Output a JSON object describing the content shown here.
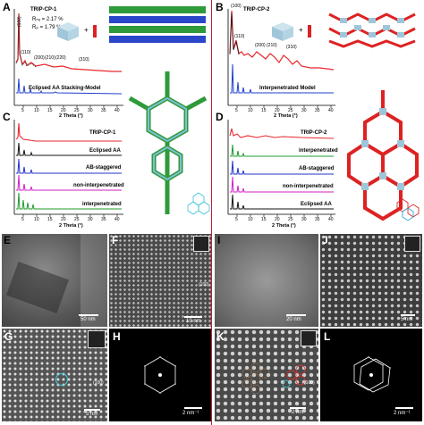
{
  "panels": {
    "A": {
      "label": "A",
      "sample": "TRIP-CP-1",
      "rwp": "Rₙᵤ = 2.17 %",
      "rp": "Rₚ = 1.79 %",
      "peaks": [
        "(100)",
        "(110)",
        "(200)",
        "(210)",
        "(220)",
        "(310)"
      ],
      "model": "Eclipsed AA Stacking-Model",
      "xlabel": "2 Theta (°)",
      "ticks": [
        "5",
        "10",
        "15",
        "20",
        "25",
        "30",
        "35",
        "40"
      ]
    },
    "B": {
      "label": "B",
      "sample": "TRIP-CP-2",
      "peaks": [
        "(100)",
        "(110)",
        "(200)",
        "(210)",
        "(310)"
      ],
      "model": "Interpenetrated Model",
      "xlabel": "2 Theta (°)",
      "ticks": [
        "5",
        "10",
        "15",
        "20",
        "25",
        "30",
        "35",
        "40"
      ]
    },
    "C": {
      "label": "C",
      "traces": [
        "TRIP-CP-1",
        "Eclipsed AA",
        "AB-staggered",
        "non-interpenetrated",
        "interpenetrated"
      ],
      "xlabel": "2 Theta (°)",
      "ticks": [
        "5",
        "10",
        "15",
        "20",
        "25",
        "30",
        "35",
        "40"
      ]
    },
    "D": {
      "label": "D",
      "traces": [
        "TRIP-CP-2",
        "interpenetrated",
        "AB-staggered",
        "non-interpenetrated",
        "Eclipsed AA"
      ],
      "xlabel": "2 Theta (°)",
      "ticks": [
        "5",
        "10",
        "15",
        "20",
        "25",
        "30",
        "35",
        "40"
      ]
    },
    "E": {
      "label": "E",
      "scale": "50 nm"
    },
    "F": {
      "label": "F",
      "scale": "10 nm",
      "plane": "(100)"
    },
    "G": {
      "label": "G",
      "scale": "5 nm",
      "plane": "(100)"
    },
    "H": {
      "label": "H",
      "scale": "2 nm⁻¹"
    },
    "I": {
      "label": "I",
      "scale": "20 nm"
    },
    "J": {
      "label": "J",
      "scale": "5 nm"
    },
    "K": {
      "label": "K",
      "scale": "2 nm",
      "plane": "(100)"
    },
    "L": {
      "label": "L",
      "scale": "2 nm⁻¹"
    }
  },
  "colors": {
    "experimental": "#e8282e",
    "model": "#1f3fcf",
    "black": "#111111",
    "green": "#1e9a2e",
    "magenta": "#d21fc6",
    "blue": "#2233cc",
    "divider": "#c0202a"
  }
}
